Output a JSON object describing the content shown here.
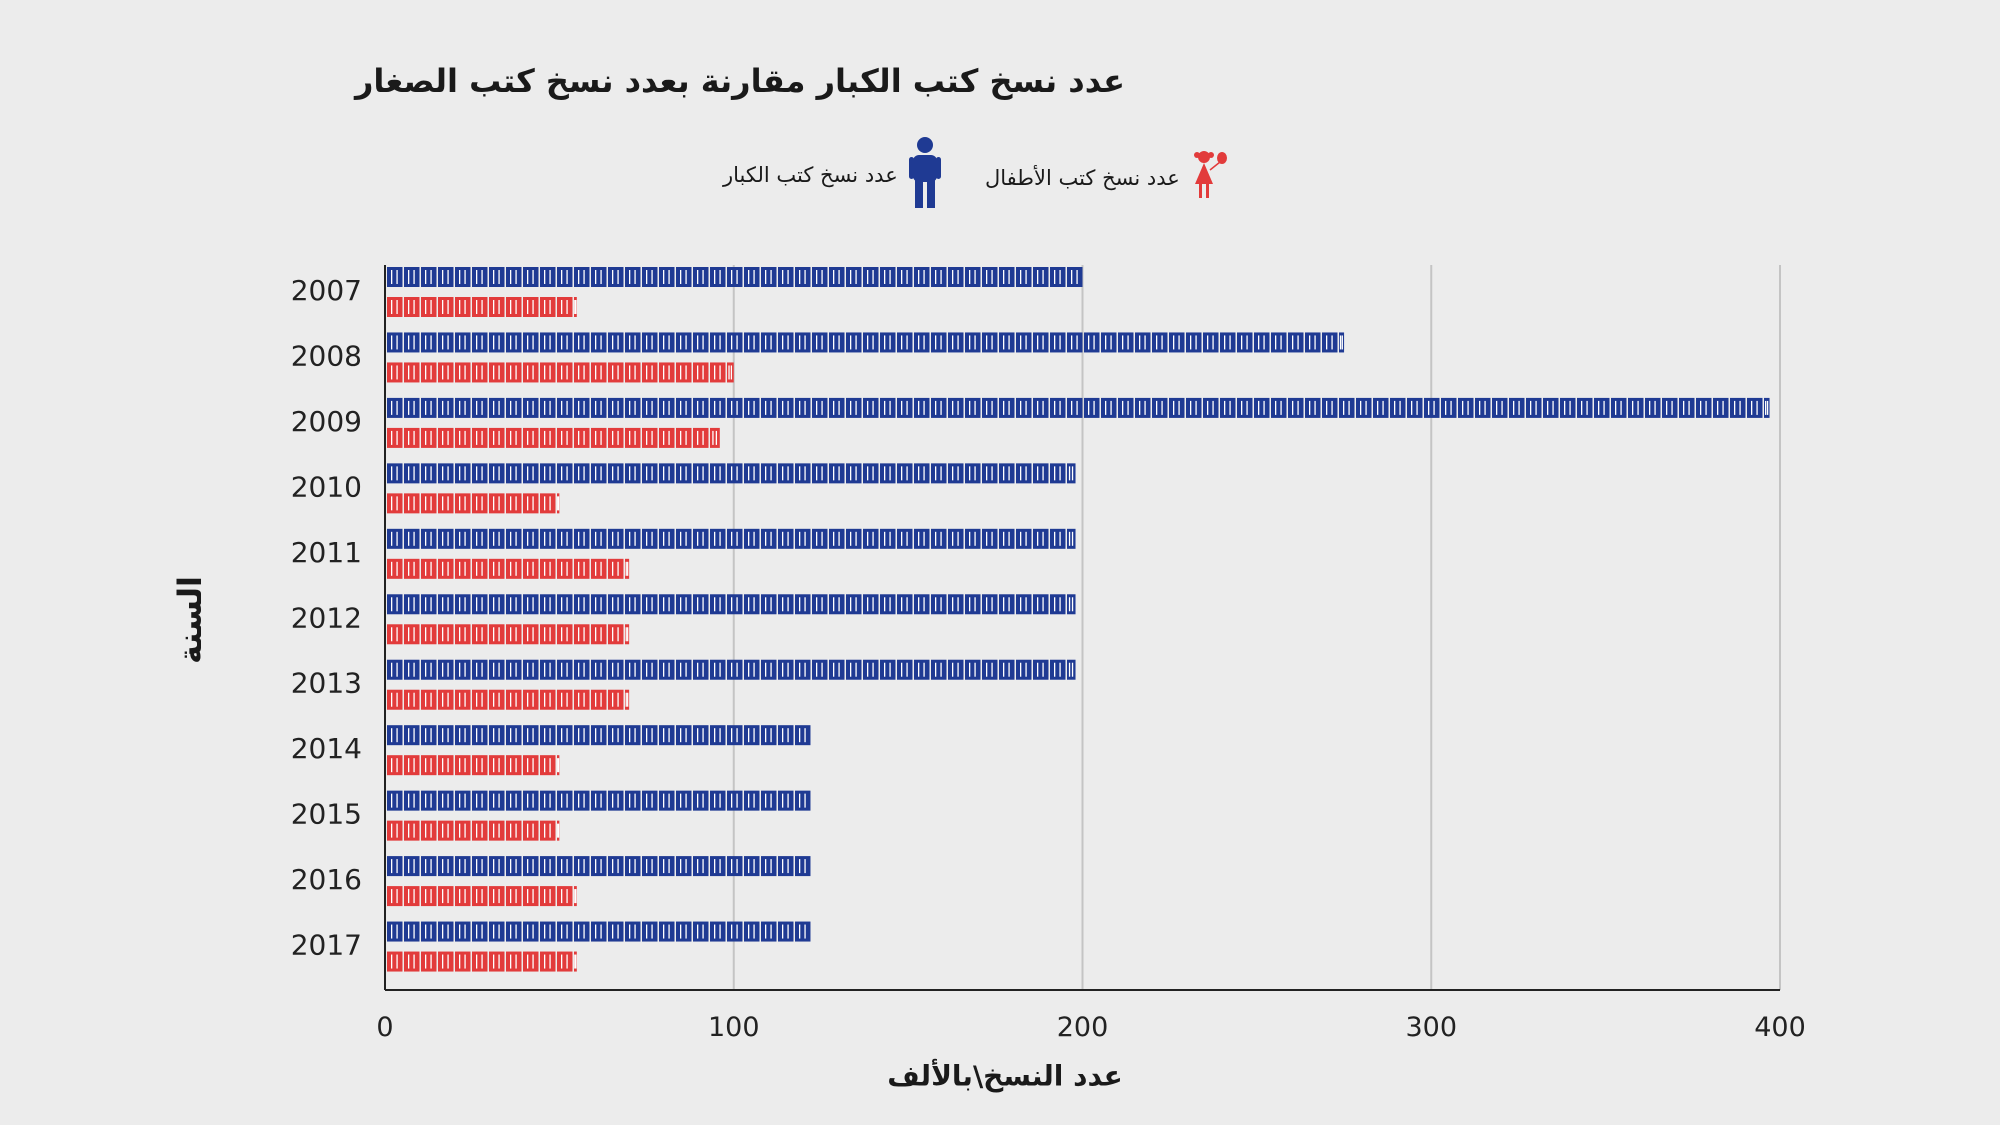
{
  "chart_data": {
    "type": "bar",
    "title": "عدد نسخ كتب الكبار مقارنة بعدد نسخ كتب الصغار",
    "xlabel": "عدد النسخ\\بالألف",
    "ylabel": "السنة",
    "categories": [
      "2007",
      "2008",
      "2009",
      "2010",
      "2011",
      "2012",
      "2013",
      "2014",
      "2015",
      "2016",
      "2017"
    ],
    "series": [
      {
        "name": "عدد نسخ كتب الكبار",
        "color": "#1f3a93",
        "values": [
          200,
          275,
          397,
          198,
          198,
          198,
          198,
          122,
          122,
          122,
          122
        ]
      },
      {
        "name": "عدد نسخ كتب الأطفال",
        "color": "#e23b3b",
        "values": [
          55,
          100,
          96,
          50,
          70,
          70,
          70,
          50,
          50,
          55,
          55
        ]
      }
    ],
    "xlim": [
      0,
      400
    ],
    "xticks": [
      "0",
      "100",
      "200",
      "300",
      "400"
    ],
    "grid": true,
    "orientation": "horizontal",
    "legend_position": "top"
  },
  "legend_icons": {
    "adults": "boy-icon",
    "children": "girl-with-balloon-icon"
  }
}
